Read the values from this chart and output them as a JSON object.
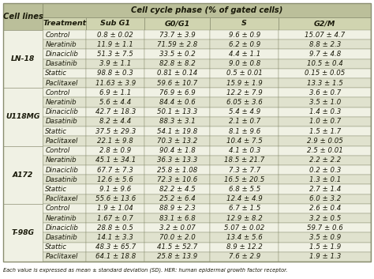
{
  "title": "Cell cycle phase (% of gated cells)",
  "col_headers": [
    "Treatment",
    "Sub G1",
    "G0/G1",
    "S",
    "G2/M"
  ],
  "rows": [
    [
      "LN-18",
      "Control",
      "0.8 ± 0.02",
      "73.7 ± 3.9",
      "9.6 ± 0.9",
      "15.07 ± 4.7"
    ],
    [
      "LN-18",
      "Neratinib",
      "11.9 ± 1.1",
      "71.59 ± 2.8",
      "6.2 ± 0.9",
      "8.8 ± 2.3"
    ],
    [
      "LN-18",
      "Dinaciclib",
      "51.3 ± 7.5",
      "33.5 ± 0.2",
      "4.4 ± 1.1",
      "9.7 ± 4.8"
    ],
    [
      "LN-18",
      "Dasatinib",
      "3.9 ± 1.1",
      "82.8 ± 8.2",
      "9.0 ± 0.8",
      "10.5 ± 0.4"
    ],
    [
      "LN-18",
      "Stattic",
      "98.8 ± 0.3",
      "0.81 ± 0.14",
      "0.5 ± 0.01",
      "0.15 ± 0.05"
    ],
    [
      "LN-18",
      "Paclitaxel",
      "11.63 ± 3.9",
      "59.6 ± 10.7",
      "15.9 ± 1.9",
      "13.3 ± 1.5"
    ],
    [
      "U118MG",
      "Control",
      "6.9 ± 1.1",
      "76.9 ± 6.9",
      "12.2 ± 7.9",
      "3.6 ± 0.7"
    ],
    [
      "U118MG",
      "Neratinib",
      "5.6 ± 4.4",
      "84.4 ± 0.6",
      "6.05 ± 3.6",
      "3.5 ± 1.0"
    ],
    [
      "U118MG",
      "Dinaciclib",
      "42.7 ± 18.3",
      "50.1 ± 13.3",
      "5.4 ± 4.9",
      "1.4 ± 0.3"
    ],
    [
      "U118MG",
      "Dasatinib",
      "8.2 ± 4.4",
      "88.3 ± 3.1",
      "2.1 ± 0.7",
      "1.0 ± 0.7"
    ],
    [
      "U118MG",
      "Stattic",
      "37.5 ± 29.3",
      "54.1 ± 19.8",
      "8.1 ± 9.6",
      "1.5 ± 1.7"
    ],
    [
      "U118MG",
      "Paclitaxel",
      "22.1 ± 9.8",
      "70.3 ± 13.2",
      "10.4 ± 7.5",
      "2.9 ± 0.05"
    ],
    [
      "A172",
      "Control",
      "2.8 ± 0.9",
      "90.4 ± 1.8",
      "4.1 ± 0.3",
      "2.5 ± 0.01"
    ],
    [
      "A172",
      "Neratinib",
      "45.1 ± 34.1",
      "36.3 ± 13.3",
      "18.5 ± 21.7",
      "2.2 ± 2.2"
    ],
    [
      "A172",
      "Dinaciclib",
      "67.7 ± 7.3",
      "25.8 ± 1.08",
      "7.3 ± 7.7",
      "0.2 ± 0.3"
    ],
    [
      "A172",
      "Dasatinib",
      "12.6 ± 5.6",
      "72.3 ± 10.6",
      "16.5 ± 20.5",
      "1.3 ± 0.1"
    ],
    [
      "A172",
      "Stattic",
      "9.1 ± 9.6",
      "82.2 ± 4.5",
      "6.8 ± 5.5",
      "2.7 ± 1.4"
    ],
    [
      "A172",
      "Paclitaxel",
      "55.6 ± 13.6",
      "25.2 ± 6.4",
      "12.4 ± 4.9",
      "6.0 ± 3.2"
    ],
    [
      "T-98G",
      "Control",
      "1.9 ± 1.04",
      "88.9 ± 2.3",
      "6.7 ± 1.5",
      "2.6 ± 0.4"
    ],
    [
      "T-98G",
      "Neratinib",
      "1.67 ± 0.7",
      "83.1 ± 6.8",
      "12.9 ± 8.2",
      "3.2 ± 0.5"
    ],
    [
      "T-98G",
      "Dinaciclib",
      "28.8 ± 0.5",
      "3.2 ± 0.07",
      "5.07 ± 0.02",
      "59.7 ± 0.6"
    ],
    [
      "T-98G",
      "Dasatinib",
      "14.1 ± 3.3",
      "70.0 ± 2.0",
      "13.4 ± 5.6",
      "3.5 ± 0.9"
    ],
    [
      "T-98G",
      "Stattic",
      "48.3 ± 65.7",
      "41.5 ± 52.7",
      "8.9 ± 12.2",
      "1.5 ± 1.9"
    ],
    [
      "T-98G",
      "Paclitaxel",
      "64.1 ± 18.8",
      "25.8 ± 13.9",
      "7.6 ± 2.9",
      "1.9 ± 1.3"
    ]
  ],
  "footer": "Each value is expressed as mean ± standard deviation (SD). HER: human epidermal growth factor receptor.",
  "header_bg": "#bbbf9a",
  "subheader_bg": "#d0d4b0",
  "row_light_bg": "#f0f1e4",
  "row_dark_bg": "#e0e2ce",
  "cell_line_bg_even": "#f0f1e4",
  "cell_line_bg_odd": "#e0e2ce",
  "border_color": "#8a8e70",
  "text_color": "#1a1a0a",
  "font_size": 6.2,
  "header_font_size": 7.2,
  "sub_header_font_size": 6.8
}
